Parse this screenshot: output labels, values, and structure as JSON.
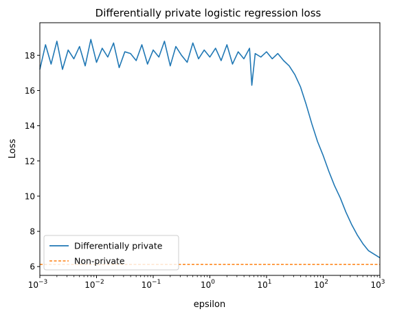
{
  "chart_data": {
    "type": "line",
    "title": "Differentially private logistic regression loss",
    "xlabel": "epsilon",
    "ylabel": "Loss",
    "xscale": "log",
    "xlim": [
      0.001,
      1000
    ],
    "ylim": [
      5.5,
      19.85
    ],
    "x_ticks": [
      {
        "value": 0.001,
        "base": "10",
        "exp": "−3"
      },
      {
        "value": 0.01,
        "base": "10",
        "exp": "−2"
      },
      {
        "value": 0.1,
        "base": "10",
        "exp": "−1"
      },
      {
        "value": 1,
        "base": "10",
        "exp": "0"
      },
      {
        "value": 10,
        "base": "10",
        "exp": "1"
      },
      {
        "value": 100,
        "base": "10",
        "exp": "2"
      },
      {
        "value": 1000,
        "base": "10",
        "exp": "3"
      }
    ],
    "y_ticks": [
      "6",
      "8",
      "10",
      "12",
      "14",
      "16",
      "18"
    ],
    "grid": false,
    "legend_position": "lower-left",
    "colors": {
      "private": "#1f77b4",
      "nonprivate": "#ff7f0e"
    },
    "series": [
      {
        "name": "Differentially private",
        "style": "solid",
        "x": [
          0.001,
          0.00126,
          0.00158,
          0.002,
          0.00251,
          0.00316,
          0.00398,
          0.00501,
          0.00631,
          0.00794,
          0.01,
          0.0126,
          0.0158,
          0.02,
          0.0251,
          0.0316,
          0.0398,
          0.0501,
          0.0631,
          0.0794,
          0.1,
          0.126,
          0.158,
          0.2,
          0.251,
          0.316,
          0.398,
          0.501,
          0.631,
          0.794,
          1,
          1.26,
          1.58,
          2,
          2.51,
          3.16,
          3.98,
          5.01,
          5.5,
          6.31,
          7.94,
          10,
          12.6,
          15.8,
          20,
          25.1,
          31.6,
          39.8,
          50.1,
          63.1,
          79.4,
          100,
          126,
          158,
          200,
          251,
          316,
          398,
          501,
          631,
          794,
          1000
        ],
        "y": [
          17.2,
          18.6,
          17.5,
          18.8,
          17.2,
          18.3,
          17.8,
          18.5,
          17.4,
          18.9,
          17.6,
          18.4,
          17.9,
          18.7,
          17.3,
          18.2,
          18.1,
          17.7,
          18.6,
          17.5,
          18.3,
          17.9,
          18.8,
          17.4,
          18.5,
          18.0,
          17.6,
          18.7,
          17.8,
          18.3,
          17.9,
          18.4,
          17.7,
          18.6,
          17.5,
          18.2,
          17.8,
          18.4,
          16.3,
          18.1,
          17.9,
          18.2,
          17.8,
          18.1,
          17.7,
          17.4,
          16.9,
          16.2,
          15.2,
          14.1,
          13.1,
          12.3,
          11.4,
          10.6,
          9.9,
          9.1,
          8.4,
          7.8,
          7.3,
          6.9,
          6.7,
          6.5
        ]
      },
      {
        "name": "Non-private",
        "style": "dashed",
        "x": [
          0.001,
          1000
        ],
        "y": [
          6.12,
          6.12
        ]
      }
    ]
  }
}
